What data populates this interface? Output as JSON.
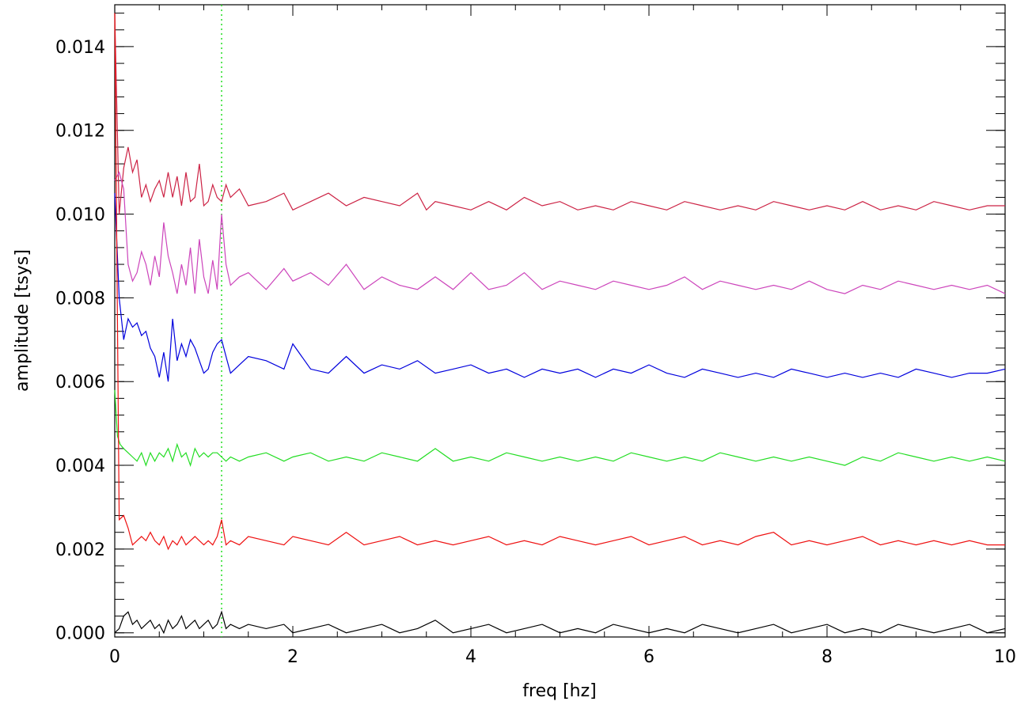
{
  "chart_data": {
    "type": "line",
    "xlabel": "freq [hz]",
    "ylabel": "amplitude [tsys]",
    "xlim": [
      0,
      10
    ],
    "ylim": [
      -0.0001,
      0.015
    ],
    "x_ticks": [
      {
        "value": 0,
        "label": "0"
      },
      {
        "value": 2,
        "label": "2"
      },
      {
        "value": 4,
        "label": "4"
      },
      {
        "value": 6,
        "label": "6"
      },
      {
        "value": 8,
        "label": "8"
      },
      {
        "value": 10,
        "label": "10"
      }
    ],
    "y_ticks": [
      {
        "value": 0.0,
        "label": "0.000"
      },
      {
        "value": 0.002,
        "label": "0.002"
      },
      {
        "value": 0.004,
        "label": "0.004"
      },
      {
        "value": 0.006,
        "label": "0.006"
      },
      {
        "value": 0.008,
        "label": "0.008"
      },
      {
        "value": 0.01,
        "label": "0.010"
      },
      {
        "value": 0.012,
        "label": "0.012"
      },
      {
        "value": 0.014,
        "label": "0.014"
      }
    ],
    "x_minor_step": 0.5,
    "y_minor_step": 0.0004,
    "grid": false,
    "reference_line": {
      "x": 1.2,
      "color": "#22dd22",
      "style": "dotted"
    },
    "series": [
      {
        "color": "#cc2244",
        "x": [
          0,
          0.05,
          0.1,
          0.15,
          0.2,
          0.25,
          0.3,
          0.35,
          0.4,
          0.45,
          0.5,
          0.55,
          0.6,
          0.65,
          0.7,
          0.75,
          0.8,
          0.85,
          0.9,
          0.95,
          1.0,
          1.05,
          1.1,
          1.15,
          1.2,
          1.25,
          1.3,
          1.4,
          1.5,
          1.7,
          1.9,
          2.0,
          2.2,
          2.4,
          2.6,
          2.8,
          3.0,
          3.2,
          3.4,
          3.5,
          3.6,
          3.8,
          4.0,
          4.2,
          4.4,
          4.6,
          4.8,
          5.0,
          5.2,
          5.4,
          5.6,
          5.8,
          6.0,
          6.2,
          6.4,
          6.6,
          6.8,
          7.0,
          7.2,
          7.4,
          7.6,
          7.8,
          8.0,
          8.2,
          8.4,
          8.6,
          8.8,
          9.0,
          9.2,
          9.4,
          9.6,
          9.8,
          10.0
        ],
        "y": [
          0.0148,
          0.01,
          0.0111,
          0.0116,
          0.011,
          0.0113,
          0.0104,
          0.0107,
          0.0103,
          0.0106,
          0.0108,
          0.0104,
          0.011,
          0.0104,
          0.0109,
          0.0102,
          0.011,
          0.0103,
          0.0104,
          0.0112,
          0.0102,
          0.0103,
          0.0107,
          0.0104,
          0.0103,
          0.0107,
          0.0104,
          0.0106,
          0.0102,
          0.0103,
          0.0105,
          0.0101,
          0.0103,
          0.0105,
          0.0102,
          0.0104,
          0.0103,
          0.0102,
          0.0105,
          0.0101,
          0.0103,
          0.0102,
          0.0101,
          0.0103,
          0.0101,
          0.0104,
          0.0102,
          0.0103,
          0.0101,
          0.0102,
          0.0101,
          0.0103,
          0.0102,
          0.0101,
          0.0103,
          0.0102,
          0.0101,
          0.0102,
          0.0101,
          0.0103,
          0.0102,
          0.0101,
          0.0102,
          0.0101,
          0.0103,
          0.0101,
          0.0102,
          0.0101,
          0.0103,
          0.0102,
          0.0101,
          0.0102,
          0.0102
        ]
      },
      {
        "color": "#cc44bb",
        "x": [
          0,
          0.05,
          0.1,
          0.15,
          0.2,
          0.25,
          0.3,
          0.35,
          0.4,
          0.45,
          0.5,
          0.55,
          0.6,
          0.65,
          0.7,
          0.75,
          0.8,
          0.85,
          0.9,
          0.95,
          1.0,
          1.05,
          1.1,
          1.15,
          1.2,
          1.25,
          1.3,
          1.4,
          1.5,
          1.7,
          1.9,
          2.0,
          2.2,
          2.4,
          2.6,
          2.8,
          3.0,
          3.2,
          3.4,
          3.6,
          3.8,
          4.0,
          4.2,
          4.4,
          4.6,
          4.8,
          5.0,
          5.2,
          5.4,
          5.6,
          5.8,
          6.0,
          6.2,
          6.4,
          6.6,
          6.8,
          7.0,
          7.2,
          7.4,
          7.6,
          7.8,
          8.0,
          8.2,
          8.4,
          8.6,
          8.8,
          9.0,
          9.2,
          9.4,
          9.6,
          9.8,
          10.0
        ],
        "y": [
          0.0108,
          0.011,
          0.0106,
          0.0088,
          0.0084,
          0.0086,
          0.0091,
          0.0088,
          0.0083,
          0.009,
          0.0085,
          0.0098,
          0.009,
          0.0086,
          0.0081,
          0.0088,
          0.0083,
          0.0092,
          0.0081,
          0.0094,
          0.0085,
          0.0081,
          0.0089,
          0.0082,
          0.01,
          0.0088,
          0.0083,
          0.0085,
          0.0086,
          0.0082,
          0.0087,
          0.0084,
          0.0086,
          0.0083,
          0.0088,
          0.0082,
          0.0085,
          0.0083,
          0.0082,
          0.0085,
          0.0082,
          0.0086,
          0.0082,
          0.0083,
          0.0086,
          0.0082,
          0.0084,
          0.0083,
          0.0082,
          0.0084,
          0.0083,
          0.0082,
          0.0083,
          0.0085,
          0.0082,
          0.0084,
          0.0083,
          0.0082,
          0.0083,
          0.0082,
          0.0084,
          0.0082,
          0.0081,
          0.0083,
          0.0082,
          0.0084,
          0.0083,
          0.0082,
          0.0083,
          0.0082,
          0.0083,
          0.0081
        ]
      },
      {
        "color": "#0000dd",
        "x": [
          0,
          0.05,
          0.1,
          0.15,
          0.2,
          0.25,
          0.3,
          0.35,
          0.4,
          0.45,
          0.5,
          0.55,
          0.6,
          0.65,
          0.7,
          0.75,
          0.8,
          0.85,
          0.9,
          0.95,
          1.0,
          1.05,
          1.1,
          1.15,
          1.2,
          1.25,
          1.3,
          1.4,
          1.5,
          1.7,
          1.9,
          2.0,
          2.2,
          2.4,
          2.6,
          2.8,
          3.0,
          3.2,
          3.4,
          3.6,
          3.8,
          4.0,
          4.2,
          4.4,
          4.6,
          4.8,
          5.0,
          5.2,
          5.4,
          5.6,
          5.8,
          6.0,
          6.2,
          6.4,
          6.6,
          6.8,
          7.0,
          7.2,
          7.4,
          7.6,
          7.8,
          8.0,
          8.2,
          8.4,
          8.6,
          8.8,
          9.0,
          9.2,
          9.4,
          9.6,
          9.8,
          10.0
        ],
        "y": [
          0.0105,
          0.008,
          0.007,
          0.0075,
          0.0073,
          0.0074,
          0.0071,
          0.0072,
          0.0068,
          0.0066,
          0.0061,
          0.0067,
          0.006,
          0.0075,
          0.0065,
          0.0069,
          0.0066,
          0.007,
          0.0068,
          0.0065,
          0.0062,
          0.0063,
          0.0067,
          0.0069,
          0.007,
          0.0066,
          0.0062,
          0.0064,
          0.0066,
          0.0065,
          0.0063,
          0.0069,
          0.0063,
          0.0062,
          0.0066,
          0.0062,
          0.0064,
          0.0063,
          0.0065,
          0.0062,
          0.0063,
          0.0064,
          0.0062,
          0.0063,
          0.0061,
          0.0063,
          0.0062,
          0.0063,
          0.0061,
          0.0063,
          0.0062,
          0.0064,
          0.0062,
          0.0061,
          0.0063,
          0.0062,
          0.0061,
          0.0062,
          0.0061,
          0.0063,
          0.0062,
          0.0061,
          0.0062,
          0.0061,
          0.0062,
          0.0061,
          0.0063,
          0.0062,
          0.0061,
          0.0062,
          0.0062,
          0.0063
        ]
      },
      {
        "color": "#22dd22",
        "x": [
          0,
          0.03,
          0.06,
          0.1,
          0.15,
          0.2,
          0.25,
          0.3,
          0.35,
          0.4,
          0.45,
          0.5,
          0.55,
          0.6,
          0.65,
          0.7,
          0.75,
          0.8,
          0.85,
          0.9,
          0.95,
          1.0,
          1.05,
          1.1,
          1.15,
          1.2,
          1.25,
          1.3,
          1.4,
          1.5,
          1.7,
          1.9,
          2.0,
          2.2,
          2.4,
          2.6,
          2.8,
          3.0,
          3.2,
          3.4,
          3.6,
          3.8,
          4.0,
          4.2,
          4.4,
          4.6,
          4.8,
          5.0,
          5.2,
          5.4,
          5.6,
          5.8,
          6.0,
          6.2,
          6.4,
          6.6,
          6.8,
          7.0,
          7.2,
          7.4,
          7.6,
          7.8,
          8.0,
          8.2,
          8.4,
          8.6,
          8.8,
          9.0,
          9.2,
          9.4,
          9.6,
          9.8,
          10.0
        ],
        "y": [
          0.0058,
          0.0047,
          0.0045,
          0.0044,
          0.0043,
          0.0042,
          0.0041,
          0.0043,
          0.004,
          0.0043,
          0.0041,
          0.0043,
          0.0042,
          0.0044,
          0.0041,
          0.0045,
          0.0042,
          0.0043,
          0.004,
          0.0044,
          0.0042,
          0.0043,
          0.0042,
          0.0043,
          0.0043,
          0.0042,
          0.0041,
          0.0042,
          0.0041,
          0.0042,
          0.0043,
          0.0041,
          0.0042,
          0.0043,
          0.0041,
          0.0042,
          0.0041,
          0.0043,
          0.0042,
          0.0041,
          0.0044,
          0.0041,
          0.0042,
          0.0041,
          0.0043,
          0.0042,
          0.0041,
          0.0042,
          0.0041,
          0.0042,
          0.0041,
          0.0043,
          0.0042,
          0.0041,
          0.0042,
          0.0041,
          0.0043,
          0.0042,
          0.0041,
          0.0042,
          0.0041,
          0.0042,
          0.0041,
          0.004,
          0.0042,
          0.0041,
          0.0043,
          0.0042,
          0.0041,
          0.0042,
          0.0041,
          0.0042,
          0.0041
        ]
      },
      {
        "color": "#ee1111",
        "x": [
          0,
          0.05,
          0.1,
          0.15,
          0.2,
          0.25,
          0.3,
          0.35,
          0.4,
          0.45,
          0.5,
          0.55,
          0.6,
          0.65,
          0.7,
          0.75,
          0.8,
          0.85,
          0.9,
          0.95,
          1.0,
          1.05,
          1.1,
          1.15,
          1.2,
          1.25,
          1.3,
          1.4,
          1.5,
          1.7,
          1.9,
          2.0,
          2.2,
          2.4,
          2.6,
          2.8,
          3.0,
          3.2,
          3.4,
          3.6,
          3.8,
          4.0,
          4.2,
          4.4,
          4.6,
          4.8,
          5.0,
          5.2,
          5.4,
          5.6,
          5.8,
          6.0,
          6.2,
          6.4,
          6.6,
          6.8,
          7.0,
          7.2,
          7.4,
          7.6,
          7.8,
          8.0,
          8.2,
          8.4,
          8.6,
          8.8,
          9.0,
          9.2,
          9.4,
          9.6,
          9.8,
          10.0
        ],
        "y": [
          0.0148,
          0.0027,
          0.0028,
          0.0025,
          0.0021,
          0.0022,
          0.0023,
          0.0022,
          0.0024,
          0.0022,
          0.0021,
          0.0023,
          0.002,
          0.0022,
          0.0021,
          0.0023,
          0.0021,
          0.0022,
          0.0023,
          0.0022,
          0.0021,
          0.0022,
          0.0021,
          0.0023,
          0.0027,
          0.0021,
          0.0022,
          0.0021,
          0.0023,
          0.0022,
          0.0021,
          0.0023,
          0.0022,
          0.0021,
          0.0024,
          0.0021,
          0.0022,
          0.0023,
          0.0021,
          0.0022,
          0.0021,
          0.0022,
          0.0023,
          0.0021,
          0.0022,
          0.0021,
          0.0023,
          0.0022,
          0.0021,
          0.0022,
          0.0023,
          0.0021,
          0.0022,
          0.0023,
          0.0021,
          0.0022,
          0.0021,
          0.0023,
          0.0024,
          0.0021,
          0.0022,
          0.0021,
          0.0022,
          0.0023,
          0.0021,
          0.0022,
          0.0021,
          0.0022,
          0.0021,
          0.0022,
          0.0021,
          0.0021
        ]
      },
      {
        "color": "#000000",
        "x": [
          0,
          0.05,
          0.1,
          0.15,
          0.2,
          0.25,
          0.3,
          0.35,
          0.4,
          0.45,
          0.5,
          0.55,
          0.6,
          0.65,
          0.7,
          0.75,
          0.8,
          0.85,
          0.9,
          0.95,
          1.0,
          1.05,
          1.1,
          1.15,
          1.2,
          1.25,
          1.3,
          1.4,
          1.5,
          1.7,
          1.9,
          2.0,
          2.2,
          2.4,
          2.6,
          2.8,
          3.0,
          3.2,
          3.4,
          3.6,
          3.8,
          4.0,
          4.2,
          4.4,
          4.6,
          4.8,
          5.0,
          5.2,
          5.4,
          5.6,
          5.8,
          6.0,
          6.2,
          6.4,
          6.6,
          6.8,
          7.0,
          7.2,
          7.4,
          7.6,
          7.8,
          8.0,
          8.2,
          8.4,
          8.6,
          8.8,
          9.0,
          9.2,
          9.4,
          9.6,
          9.8,
          10.0
        ],
        "y": [
          0.0,
          0.0001,
          0.0004,
          0.0005,
          0.0002,
          0.0003,
          0.0001,
          0.0002,
          0.0003,
          0.0001,
          0.0002,
          0.0,
          0.0003,
          0.0001,
          0.0002,
          0.0004,
          0.0001,
          0.0002,
          0.0003,
          0.0001,
          0.0002,
          0.0003,
          0.0001,
          0.0002,
          0.0005,
          0.0001,
          0.0002,
          0.0001,
          0.0002,
          0.0001,
          0.0002,
          0.0,
          0.0001,
          0.0002,
          0.0,
          0.0001,
          0.0002,
          0.0,
          0.0001,
          0.0003,
          0.0,
          0.0001,
          0.0002,
          0.0,
          0.0001,
          0.0002,
          0.0,
          0.0001,
          0.0,
          0.0002,
          0.0001,
          0.0,
          0.0001,
          0.0,
          0.0002,
          0.0001,
          0.0,
          0.0001,
          0.0002,
          0.0,
          0.0001,
          0.0002,
          0.0,
          0.0001,
          0.0,
          0.0002,
          0.0001,
          0.0,
          0.0001,
          0.0002,
          0.0,
          0.0001
        ]
      }
    ]
  }
}
